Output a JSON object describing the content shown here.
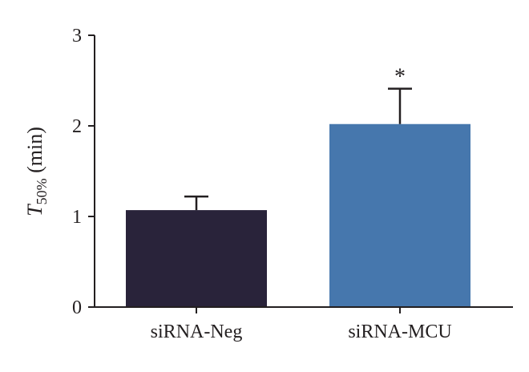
{
  "chart_data": {
    "type": "bar",
    "categories": [
      "siRNA-Neg",
      "siRNA-MCU"
    ],
    "values": [
      1.07,
      2.02
    ],
    "errors": [
      0.15,
      0.39
    ],
    "annotations": [
      "",
      "*"
    ],
    "colors": [
      "#29233a",
      "#4677ad"
    ],
    "ylabel_main": "T",
    "ylabel_sub": "50%",
    "ylabel_unit": " (min)",
    "ylim": [
      0,
      3
    ],
    "yticks": [
      "0",
      "1",
      "2",
      "3"
    ],
    "grid": false,
    "legend": "none"
  }
}
